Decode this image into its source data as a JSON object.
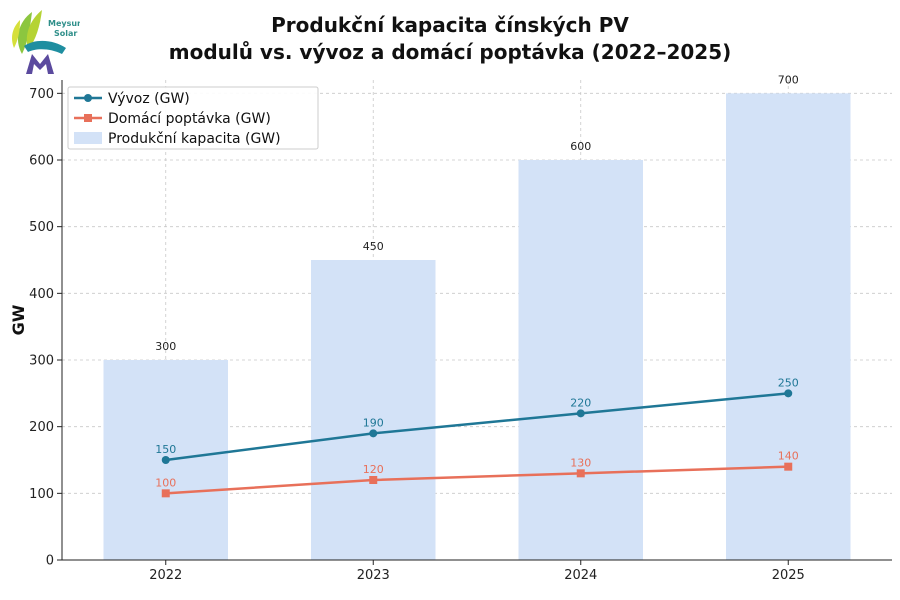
{
  "logo": {
    "line1": "Meysun",
    "line2": "Solar"
  },
  "title": {
    "line1": "Produkční kapacita čínských PV",
    "line2": "modulů vs. vývoz a domácí poptávka (2022–2025)"
  },
  "colors": {
    "bar": "#d3e2f7",
    "export": "#1f7796",
    "domestic": "#e8705a",
    "grid": "#c8c8c8"
  },
  "chart_data": {
    "type": "bar",
    "title": "Produkční kapacita čínských PV modulů vs. vývoz a domácí poptávka (2022–2025)",
    "xlabel": "",
    "ylabel": "GW",
    "ylim": [
      0,
      720
    ],
    "yticks": [
      0,
      100,
      200,
      300,
      400,
      500,
      600,
      700
    ],
    "categories": [
      "2022",
      "2023",
      "2024",
      "2025"
    ],
    "grid": true,
    "legend_position": "top-left",
    "series": [
      {
        "name": "Produkční kapacita (GW)",
        "kind": "bar",
        "values": [
          300,
          450,
          600,
          700
        ]
      },
      {
        "name": "Vývoz (GW)",
        "kind": "line",
        "marker": "circle",
        "values": [
          150,
          190,
          220,
          250
        ]
      },
      {
        "name": "Domácí poptávka (GW)",
        "kind": "line",
        "marker": "square",
        "values": [
          100,
          120,
          130,
          140
        ]
      }
    ]
  }
}
